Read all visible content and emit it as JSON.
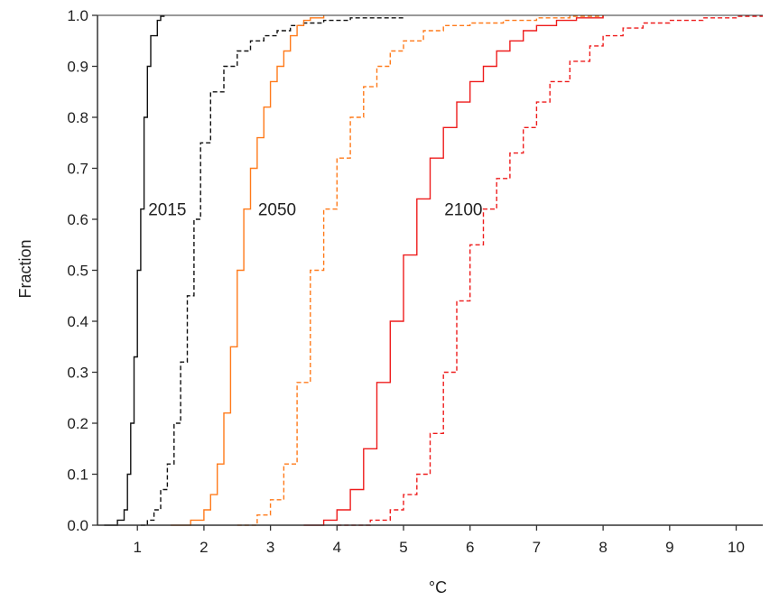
{
  "chart_data": {
    "type": "line",
    "title": "",
    "xlabel": "°C",
    "ylabel": "Fraction",
    "xlim": [
      0.4,
      10.4
    ],
    "ylim": [
      0.0,
      1.0
    ],
    "xticks": [
      1,
      2,
      3,
      4,
      5,
      6,
      7,
      8,
      9,
      10
    ],
    "yticks": [
      "0.0",
      "0.1",
      "0.2",
      "0.3",
      "0.4",
      "0.5",
      "0.6",
      "0.7",
      "0.8",
      "0.9",
      "1.0"
    ],
    "grid": false,
    "annotations": [
      {
        "text": "2015",
        "x": 1.45,
        "y": 0.62
      },
      {
        "text": "2050",
        "x": 3.1,
        "y": 0.62
      },
      {
        "text": "2100",
        "x": 5.9,
        "y": 0.62
      }
    ],
    "colors": {
      "2015": "#111111",
      "2050": "#ff7a1a",
      "2100": "#ee1c1c",
      "axis": "#333333"
    },
    "series": [
      {
        "year": "2015",
        "style": "solid",
        "x": [
          0.5,
          0.7,
          0.8,
          0.85,
          0.9,
          0.95,
          1.0,
          1.05,
          1.1,
          1.15,
          1.2,
          1.3,
          1.35,
          1.4
        ],
        "y": [
          0.0,
          0.01,
          0.03,
          0.1,
          0.2,
          0.33,
          0.5,
          0.62,
          0.8,
          0.9,
          0.96,
          0.99,
          0.998,
          1.0
        ]
      },
      {
        "year": "2015",
        "style": "dashed",
        "x": [
          1.05,
          1.15,
          1.25,
          1.35,
          1.45,
          1.55,
          1.65,
          1.75,
          1.85,
          1.95,
          2.1,
          2.3,
          2.5,
          2.7,
          2.9,
          3.1,
          3.3,
          3.5,
          3.8,
          4.2,
          5.0
        ],
        "y": [
          0.0,
          0.01,
          0.03,
          0.07,
          0.12,
          0.2,
          0.32,
          0.45,
          0.6,
          0.75,
          0.85,
          0.9,
          0.93,
          0.95,
          0.96,
          0.97,
          0.98,
          0.985,
          0.99,
          0.995,
          1.0
        ]
      },
      {
        "year": "2050",
        "style": "solid",
        "x": [
          1.5,
          1.8,
          2.0,
          2.1,
          2.2,
          2.3,
          2.4,
          2.5,
          2.6,
          2.7,
          2.8,
          2.9,
          3.0,
          3.1,
          3.2,
          3.3,
          3.4,
          3.5,
          3.6,
          3.8
        ],
        "y": [
          0.0,
          0.01,
          0.03,
          0.06,
          0.12,
          0.22,
          0.35,
          0.5,
          0.62,
          0.7,
          0.76,
          0.82,
          0.87,
          0.9,
          0.93,
          0.96,
          0.98,
          0.99,
          0.995,
          1.0
        ]
      },
      {
        "year": "2050",
        "style": "dashed",
        "x": [
          2.5,
          2.8,
          3.0,
          3.2,
          3.4,
          3.6,
          3.8,
          4.0,
          4.2,
          4.4,
          4.6,
          4.8,
          5.0,
          5.3,
          5.6,
          6.0,
          6.5,
          7.0,
          7.5,
          8.0
        ],
        "y": [
          0.0,
          0.02,
          0.05,
          0.12,
          0.28,
          0.5,
          0.62,
          0.72,
          0.8,
          0.86,
          0.9,
          0.93,
          0.95,
          0.97,
          0.98,
          0.985,
          0.99,
          0.995,
          0.998,
          1.0
        ]
      },
      {
        "year": "2100",
        "style": "solid",
        "x": [
          3.5,
          3.8,
          4.0,
          4.2,
          4.4,
          4.6,
          4.8,
          5.0,
          5.2,
          5.4,
          5.6,
          5.8,
          6.0,
          6.2,
          6.4,
          6.6,
          6.8,
          7.0,
          7.3,
          7.6,
          8.0
        ],
        "y": [
          0.0,
          0.01,
          0.03,
          0.07,
          0.15,
          0.28,
          0.4,
          0.53,
          0.64,
          0.72,
          0.78,
          0.83,
          0.87,
          0.9,
          0.93,
          0.95,
          0.97,
          0.98,
          0.99,
          0.995,
          1.0
        ]
      },
      {
        "year": "2100",
        "style": "dashed",
        "x": [
          4.0,
          4.5,
          4.8,
          5.0,
          5.2,
          5.4,
          5.6,
          5.8,
          6.0,
          6.2,
          6.4,
          6.6,
          6.8,
          7.0,
          7.2,
          7.5,
          7.8,
          8.0,
          8.3,
          8.6,
          9.0,
          9.5,
          10.0,
          10.4
        ],
        "y": [
          0.0,
          0.01,
          0.03,
          0.06,
          0.1,
          0.18,
          0.3,
          0.44,
          0.55,
          0.62,
          0.68,
          0.73,
          0.78,
          0.83,
          0.87,
          0.91,
          0.94,
          0.96,
          0.975,
          0.985,
          0.99,
          0.995,
          0.998,
          1.0
        ]
      }
    ]
  }
}
